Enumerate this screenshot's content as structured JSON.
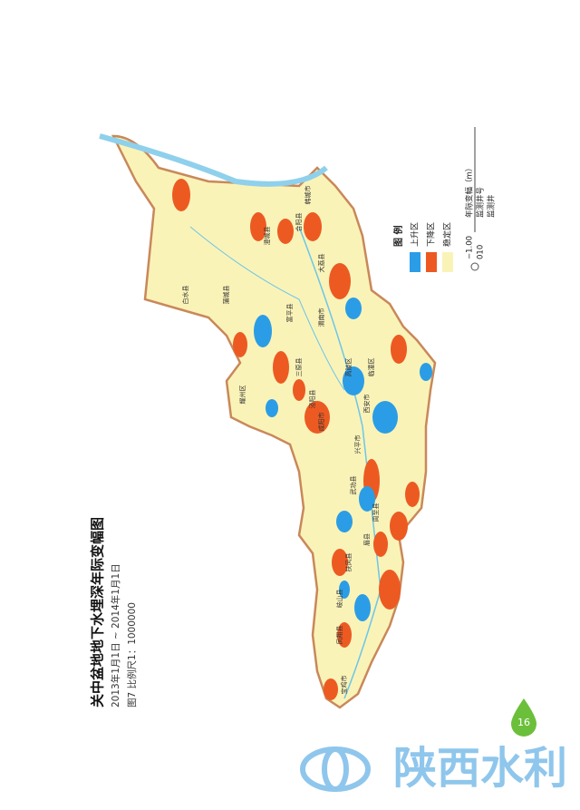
{
  "title": "关中盆地地下水埋深年际变幅图",
  "date_range": "2013年1月1日 ~ 2014年1月1日",
  "figure_caption": "图7  比例尺1：1000000",
  "legend": {
    "title": "图  例",
    "items": [
      "上升区",
      "下降区",
      "稳定区"
    ],
    "change_value": "−1.00",
    "change_label": "年际变幅（m）",
    "well_id": "010",
    "well_label": "监测井号",
    "well_name": "监测井"
  },
  "place_names": [
    "韩城市",
    "合阳县",
    "澄城县",
    "大荔县",
    "白水县",
    "蒲城县",
    "渭南市",
    "富平县",
    "耀州区",
    "三原县",
    "泾阳县",
    "高陵区",
    "临潼区",
    "西安市",
    "咸阳市",
    "兴平市",
    "武功县",
    "周至县",
    "扶风县",
    "眉县",
    "岐山县",
    "凤翔县",
    "宝鸡市"
  ],
  "page_number": "16",
  "brand": "陕西水利"
}
